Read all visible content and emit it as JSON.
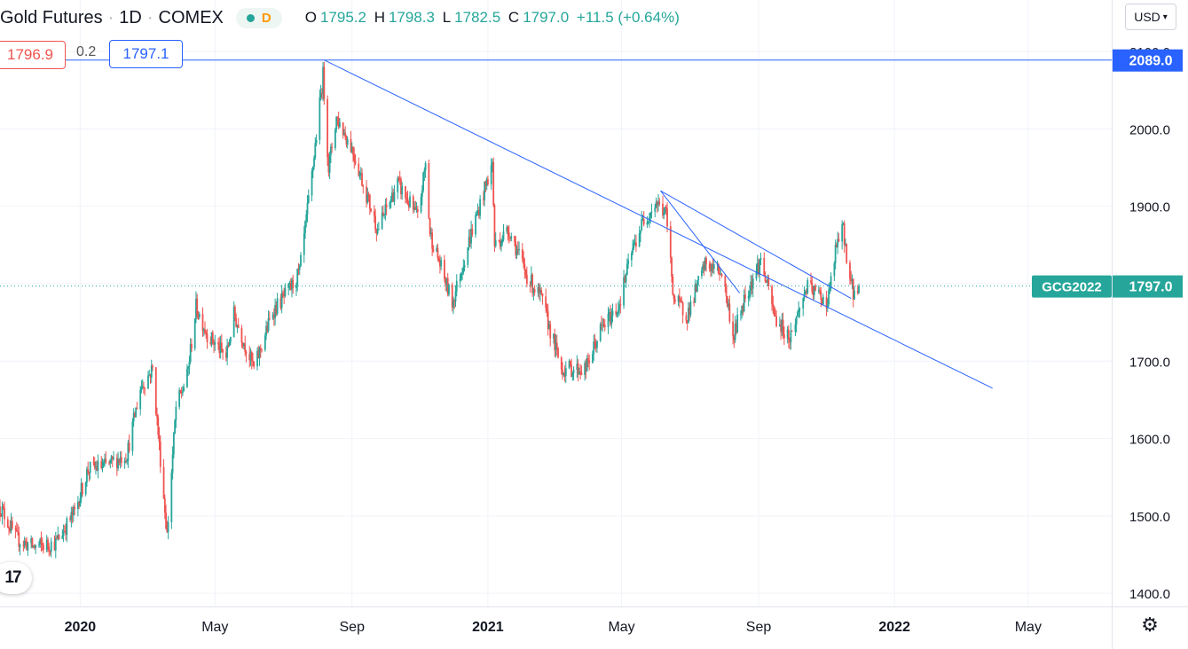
{
  "header": {
    "title": "Gold Futures",
    "interval": "1D",
    "exchange": "COMEX",
    "separator": "·",
    "pill_letter": "D",
    "open_label": "O",
    "open": "1795.2",
    "high_label": "H",
    "high": "1798.3",
    "low_label": "L",
    "low": "1782.5",
    "close_label": "C",
    "close": "1797.0",
    "change": "+11.5 (+0.64%)"
  },
  "trade": {
    "sell": "1796.9",
    "spread": "0.2",
    "buy": "1797.1"
  },
  "currency": "USD",
  "logo_text": "17",
  "colors": {
    "up": "#26a69a",
    "down": "#ef5350",
    "line": "#2962ff",
    "grid": "#f0f3fa",
    "axis": "#131722"
  },
  "chart_data": {
    "type": "candlestick",
    "symbol": "GCG2022",
    "last_price": 1797.0,
    "ylim": [
      1383,
      2115
    ],
    "y_ticks": [
      1400,
      1500,
      1600,
      1700,
      1800,
      1900,
      2000,
      2100
    ],
    "y_tick_labels": [
      "1400.0",
      "1500.0",
      "1600.0",
      "1700.0",
      "",
      "1900.0",
      "2000.0",
      "2100.0"
    ],
    "x_ticks": [
      {
        "date": "2020-01-01",
        "label": "2020",
        "bold": true
      },
      {
        "date": "2020-05-01",
        "label": "May",
        "bold": false
      },
      {
        "date": "2020-09-01",
        "label": "Sep",
        "bold": false
      },
      {
        "date": "2021-01-01",
        "label": "2021",
        "bold": true
      },
      {
        "date": "2021-05-01",
        "label": "May",
        "bold": false
      },
      {
        "date": "2021-09-01",
        "label": "Sep",
        "bold": false
      },
      {
        "date": "2022-01-01",
        "label": "2022",
        "bold": true
      },
      {
        "date": "2022-05-01",
        "label": "May",
        "bold": false
      }
    ],
    "xlim": [
      "2019-10-21",
      "2022-07-15"
    ],
    "horizontal_line": {
      "price": 2089.0,
      "label": "2089.0"
    },
    "last_price_label": {
      "symbol": "GCG2022",
      "price": "1797.0"
    },
    "trendlines": [
      {
        "start": [
          "2020-08-07",
          2089
        ],
        "end": [
          "2022-03-30",
          1665
        ]
      },
      {
        "start": [
          "2021-06-05",
          1920
        ],
        "end": [
          "2021-11-23",
          1781
        ]
      },
      {
        "start": [
          "2021-06-05",
          1920
        ],
        "end": [
          "2021-08-15",
          1788
        ]
      }
    ],
    "price_path": [
      [
        "2019-10-21",
        1512
      ],
      [
        "2019-11-05",
        1470
      ],
      [
        "2019-11-20",
        1460
      ],
      [
        "2019-12-10",
        1465
      ],
      [
        "2019-12-27",
        1505
      ],
      [
        "2020-01-08",
        1560
      ],
      [
        "2020-01-25",
        1565
      ],
      [
        "2020-02-12",
        1580
      ],
      [
        "2020-02-24",
        1665
      ],
      [
        "2020-03-06",
        1690
      ],
      [
        "2020-03-12",
        1590
      ],
      [
        "2020-03-19",
        1475
      ],
      [
        "2020-03-27",
        1640
      ],
      [
        "2020-04-06",
        1680
      ],
      [
        "2020-04-14",
        1770
      ],
      [
        "2020-04-24",
        1735
      ],
      [
        "2020-05-11",
        1705
      ],
      [
        "2020-05-18",
        1760
      ],
      [
        "2020-06-05",
        1690
      ],
      [
        "2020-06-22",
        1765
      ],
      [
        "2020-07-06",
        1790
      ],
      [
        "2020-07-16",
        1815
      ],
      [
        "2020-07-27",
        1940
      ],
      [
        "2020-08-06",
        2070
      ],
      [
        "2020-08-11",
        1950
      ],
      [
        "2020-08-18",
        2015
      ],
      [
        "2020-09-01",
        1975
      ],
      [
        "2020-09-24",
        1870
      ],
      [
        "2020-10-12",
        1930
      ],
      [
        "2020-10-30",
        1885
      ],
      [
        "2020-11-06",
        1955
      ],
      [
        "2020-11-10",
        1865
      ],
      [
        "2020-11-30",
        1775
      ],
      [
        "2020-12-16",
        1860
      ],
      [
        "2021-01-05",
        1955
      ],
      [
        "2021-01-07",
        1850
      ],
      [
        "2021-01-20",
        1870
      ],
      [
        "2021-02-05",
        1810
      ],
      [
        "2021-02-18",
        1780
      ],
      [
        "2021-03-08",
        1690
      ],
      [
        "2021-03-30",
        1690
      ],
      [
        "2021-04-12",
        1740
      ],
      [
        "2021-04-28",
        1770
      ],
      [
        "2021-05-10",
        1840
      ],
      [
        "2021-05-20",
        1880
      ],
      [
        "2021-06-01",
        1905
      ],
      [
        "2021-06-10",
        1890
      ],
      [
        "2021-06-17",
        1780
      ],
      [
        "2021-06-29",
        1760
      ],
      [
        "2021-07-15",
        1825
      ],
      [
        "2021-07-30",
        1815
      ],
      [
        "2021-08-06",
        1760
      ],
      [
        "2021-08-09",
        1730
      ],
      [
        "2021-08-20",
        1785
      ],
      [
        "2021-09-03",
        1830
      ],
      [
        "2021-09-16",
        1755
      ],
      [
        "2021-09-29",
        1730
      ],
      [
        "2021-10-14",
        1795
      ],
      [
        "2021-10-26",
        1785
      ],
      [
        "2021-11-02",
        1775
      ],
      [
        "2021-11-10",
        1850
      ],
      [
        "2021-11-16",
        1870
      ],
      [
        "2021-11-22",
        1805
      ],
      [
        "2021-11-26",
        1785
      ],
      [
        "2021-11-30",
        1797
      ]
    ]
  }
}
